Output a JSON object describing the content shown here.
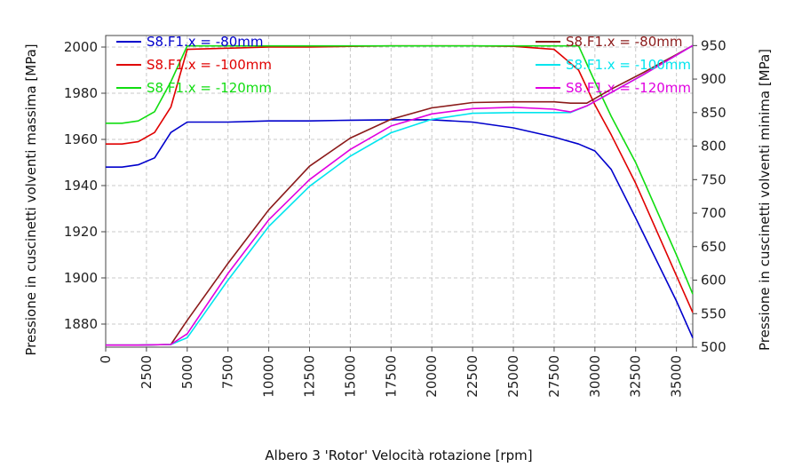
{
  "chart_data": {
    "type": "line",
    "title": "",
    "xlabel": "Albero 3 'Rotor' Velocità rotazione [rpm]",
    "ylabel_left": "Pressione in cuscinetti volventi massima [MPa]",
    "ylabel_right": "Pressione in cuscinetti volventi minima [MPa]",
    "xlim": [
      0,
      36000
    ],
    "ylim_left": [
      1870,
      2005
    ],
    "ylim_right": [
      500,
      965
    ],
    "xticks": [
      0,
      2500,
      5000,
      7500,
      10000,
      12500,
      15000,
      17500,
      20000,
      22500,
      25000,
      27500,
      30000,
      32500,
      35000
    ],
    "yticks_left": [
      1880,
      1900,
      1920,
      1940,
      1960,
      1980,
      2000
    ],
    "yticks_right": [
      500,
      550,
      600,
      650,
      700,
      750,
      800,
      850,
      900,
      950
    ],
    "grid": true,
    "legend_left_placement": "top-left",
    "legend_right_placement": "top-right",
    "series": [
      {
        "name": "S8.F1.x = -80mm",
        "axis": "left",
        "color": "#0000cc",
        "x": [
          0,
          1000,
          2000,
          3000,
          4000,
          5000,
          7500,
          10000,
          12500,
          15000,
          17500,
          20000,
          22500,
          25000,
          27500,
          29000,
          30000,
          31000,
          32500,
          35000,
          36000
        ],
        "y": [
          1948,
          1948,
          1949,
          1952,
          1963,
          1967.5,
          1967.5,
          1968,
          1968,
          1968.3,
          1968.5,
          1968.5,
          1967.5,
          1965,
          1961,
          1958,
          1955,
          1947,
          1926,
          1890,
          1874
        ]
      },
      {
        "name": "S8.F1.x = -100mm",
        "axis": "left",
        "color": "#e00000",
        "x": [
          0,
          1000,
          2000,
          3000,
          4000,
          5000,
          7500,
          10000,
          12500,
          15000,
          17500,
          20000,
          22500,
          25000,
          27500,
          29000,
          30000,
          31000,
          32500,
          35000,
          36000
        ],
        "y": [
          1958,
          1958,
          1959,
          1963,
          1974,
          1999,
          1999.5,
          2000,
          2000,
          2000.3,
          2000.5,
          2000.5,
          2000.5,
          2000.3,
          1999,
          1990,
          1975,
          1962,
          1941,
          1901,
          1885
        ]
      },
      {
        "name": "S8.F1.x = -120mm",
        "axis": "left",
        "color": "#11dd11",
        "x": [
          0,
          1000,
          2000,
          3000,
          4000,
          5000,
          7500,
          10000,
          12500,
          15000,
          17500,
          20000,
          22500,
          25000,
          27500,
          29000,
          30000,
          31000,
          32500,
          35000,
          36000
        ],
        "y": [
          1967,
          1967,
          1968,
          1972,
          1985,
          2000.5,
          2000.5,
          2000.5,
          2000.5,
          2000.5,
          2000.5,
          2000.5,
          2000.5,
          2000.5,
          2000.5,
          2000.5,
          1985,
          1970,
          1950,
          1910,
          1893
        ]
      },
      {
        "name": "S8.F1.x = -80mm",
        "axis": "right",
        "color": "#8b1a1a",
        "x": [
          0,
          2000,
          4000,
          5000,
          7500,
          10000,
          12500,
          15000,
          17500,
          20000,
          22500,
          25000,
          27500,
          28500,
          29500,
          31000,
          33000,
          36000
        ],
        "y": [
          503,
          503,
          504,
          540,
          625,
          705,
          770,
          812,
          840,
          857,
          865,
          866,
          866,
          864,
          864,
          885,
          910,
          950
        ]
      },
      {
        "name": "S8.F1.x = -100mm",
        "axis": "right",
        "color": "#00e5ee",
        "x": [
          0,
          2000,
          4000,
          5000,
          7500,
          10000,
          12500,
          15000,
          17500,
          20000,
          22500,
          25000,
          27500,
          28500,
          29500,
          31000,
          33000,
          36000
        ],
        "y": [
          503,
          503,
          504,
          514,
          600,
          680,
          740,
          785,
          820,
          840,
          849,
          850,
          850,
          850,
          860,
          880,
          907,
          950
        ]
      },
      {
        "name": "S8.F1.x = -120mm",
        "axis": "right",
        "color": "#e000e0",
        "x": [
          0,
          2000,
          4000,
          5000,
          7500,
          10000,
          12500,
          15000,
          17500,
          20000,
          22500,
          25000,
          27500,
          28500,
          29500,
          31000,
          33000,
          36000
        ],
        "y": [
          503,
          503,
          504,
          520,
          610,
          690,
          750,
          795,
          830,
          848,
          856,
          858,
          855,
          851,
          860,
          880,
          907,
          950
        ]
      }
    ]
  }
}
